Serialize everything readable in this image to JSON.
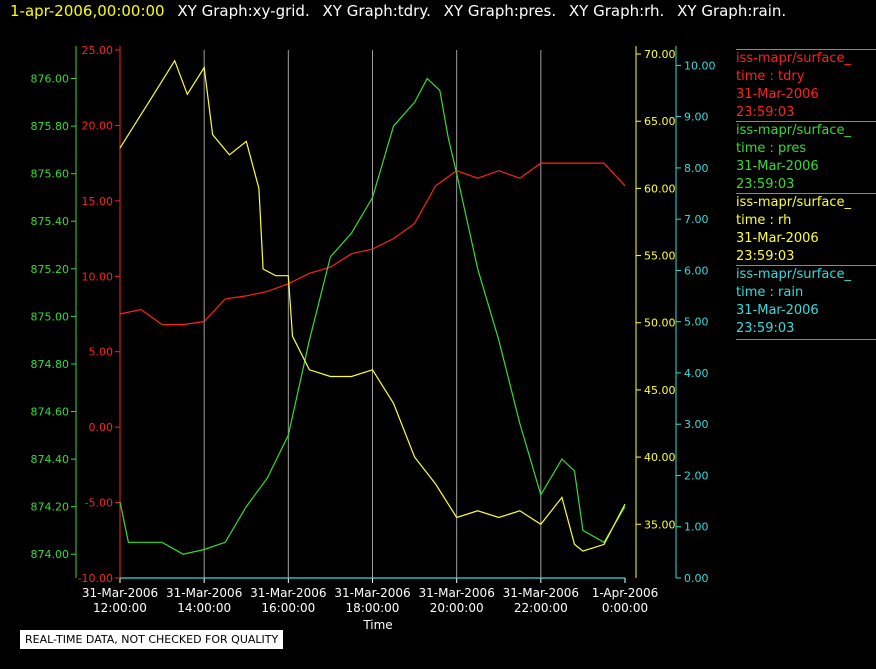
{
  "header": {
    "timestamp": "1-apr-2006,00:00:00",
    "graphs": [
      "XY Graph:xy-grid.",
      "XY Graph:tdry.",
      "XY Graph:pres.",
      "XY Graph:rh.",
      "XY Graph:rain."
    ]
  },
  "legend": [
    {
      "name": "iss-mapr/surface_",
      "line2": "time : tdry",
      "line3": "31-Mar-2006",
      "line4": "23:59:03",
      "color": "#ff2020"
    },
    {
      "name": "iss-mapr/surface_",
      "line2": "time : pres",
      "line3": "31-Mar-2006",
      "line4": "23:59:03",
      "color": "#33dd33"
    },
    {
      "name": "iss-mapr/surface_",
      "line2": "time : rh",
      "line3": "31-Mar-2006",
      "line4": "23:59:03",
      "color": "#ffff33"
    },
    {
      "name": "iss-mapr/surface_",
      "line2": "time : rain",
      "line3": "31-Mar-2006",
      "line4": "23:59:03",
      "color": "#33dddd"
    }
  ],
  "footer_note": "REAL-TIME DATA, NOT CHECKED FOR QUALITY",
  "chart_data": {
    "type": "line",
    "xlabel": "Time",
    "x_ticks": [
      {
        "date": "31-Mar-2006",
        "time": "12:00:00",
        "hour": 12
      },
      {
        "date": "31-Mar-2006",
        "time": "14:00:00",
        "hour": 14
      },
      {
        "date": "31-Mar-2006",
        "time": "16:00:00",
        "hour": 16
      },
      {
        "date": "31-Mar-2006",
        "time": "18:00:00",
        "hour": 18
      },
      {
        "date": "31-Mar-2006",
        "time": "20:00:00",
        "hour": 20
      },
      {
        "date": "31-Mar-2006",
        "time": "22:00:00",
        "hour": 22
      },
      {
        "date": "1-Apr-2006",
        "time": "0:00:00",
        "hour": 24
      }
    ],
    "xlim": [
      12,
      24
    ],
    "grid": "vertical",
    "axes": {
      "tdry": {
        "color": "#ff2020",
        "ylim": [
          -10,
          25
        ],
        "ticks": [
          "-10.00",
          "-5.00",
          "0.00",
          "5.00",
          "10.00",
          "15.00",
          "20.00",
          "25.00"
        ]
      },
      "pres": {
        "color": "#33dd33",
        "ylim": [
          873.9,
          876.12
        ],
        "ticks": [
          "874.00",
          "874.20",
          "874.40",
          "874.60",
          "874.80",
          "875.00",
          "875.20",
          "875.40",
          "875.60",
          "875.80",
          "876.00"
        ]
      },
      "rh": {
        "color": "#ffff33",
        "ylim": [
          31,
          70.3
        ],
        "ticks": [
          "35.00",
          "40.00",
          "45.00",
          "50.00",
          "55.00",
          "60.00",
          "65.00",
          "70.00"
        ]
      },
      "rain": {
        "color": "#33dddd",
        "ylim": [
          0,
          10.3
        ],
        "ticks": [
          "0.00",
          "1.00",
          "2.00",
          "3.00",
          "4.00",
          "5.00",
          "6.00",
          "7.00",
          "8.00",
          "9.00",
          "10.00"
        ]
      }
    },
    "series": [
      {
        "name": "tdry",
        "axis": "tdry",
        "x": [
          12.0,
          12.5,
          13.0,
          13.5,
          14.0,
          14.5,
          15.0,
          15.5,
          16.0,
          16.5,
          17.0,
          17.5,
          18.0,
          18.5,
          19.0,
          19.5,
          20.0,
          20.5,
          21.0,
          21.5,
          22.0,
          22.5,
          23.0,
          23.5,
          24.0
        ],
        "y": [
          7.5,
          7.8,
          6.8,
          6.8,
          7.0,
          8.5,
          8.7,
          9.0,
          9.5,
          10.2,
          10.6,
          11.5,
          11.8,
          12.5,
          13.5,
          16.0,
          17.0,
          16.5,
          17.0,
          16.5,
          17.5,
          17.5,
          17.5,
          17.5,
          16.0
        ]
      },
      {
        "name": "pres",
        "axis": "pres",
        "x": [
          12.0,
          12.2,
          12.5,
          13.0,
          13.5,
          14.0,
          14.5,
          15.0,
          15.5,
          16.0,
          16.5,
          17.0,
          17.5,
          18.0,
          18.5,
          19.0,
          19.3,
          19.6,
          19.8,
          20.0,
          20.5,
          21.0,
          21.5,
          22.0,
          22.5,
          22.8,
          23.0,
          23.5,
          24.0
        ],
        "y": [
          874.22,
          874.05,
          874.05,
          874.05,
          874.0,
          874.02,
          874.05,
          874.2,
          874.32,
          874.5,
          874.9,
          875.25,
          875.35,
          875.5,
          875.8,
          875.9,
          876.0,
          875.95,
          875.75,
          875.6,
          875.2,
          874.9,
          874.55,
          874.25,
          874.4,
          874.35,
          874.1,
          874.05,
          874.2
        ]
      },
      {
        "name": "rh",
        "axis": "rh",
        "x": [
          12.0,
          12.3,
          12.7,
          13.0,
          13.3,
          13.6,
          14.0,
          14.2,
          14.6,
          15.0,
          15.3,
          15.4,
          15.7,
          16.0,
          16.1,
          16.5,
          17.0,
          17.5,
          18.0,
          18.5,
          19.0,
          19.5,
          20.0,
          20.5,
          21.0,
          21.5,
          22.0,
          22.5,
          22.8,
          23.0,
          23.5,
          24.0
        ],
        "y": [
          63.0,
          64.5,
          66.5,
          68.0,
          69.5,
          67.0,
          69.0,
          64.0,
          62.5,
          63.5,
          60.0,
          54.0,
          53.5,
          53.5,
          49.0,
          46.5,
          46.0,
          46.0,
          46.5,
          44.0,
          40.0,
          38.0,
          35.5,
          36.0,
          35.5,
          36.0,
          35.0,
          37.0,
          33.5,
          33.0,
          33.5,
          36.5
        ]
      },
      {
        "name": "rain",
        "axis": "rain",
        "x": [
          12.0,
          24.0
        ],
        "y": [
          0.0,
          0.0
        ]
      }
    ]
  }
}
